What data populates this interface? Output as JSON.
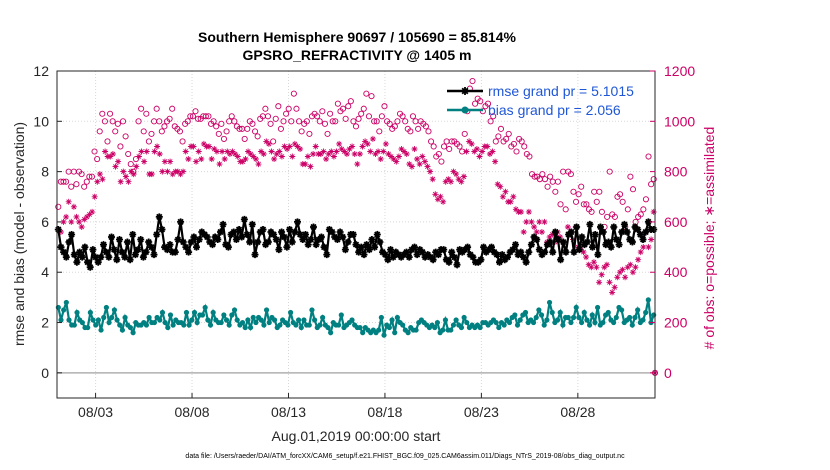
{
  "chart_data": {
    "type": "line",
    "title": "Southern Hemisphere 90697 / 105690 = 85.814%",
    "subtitle": "GPSRO_REFRACTIVITY @ 1405 m",
    "xlabel": "Aug.01,2019 00:00:00 start",
    "ylabel_left": "rmse and bias (model - observation)",
    "ylabel_right": "# of obs: o=possible; ∗=assimilated",
    "footnote": "data file: /Users/raeder/DAI/ATM_forcXX/CAM6_setup/f.e21.FHIST_BGC.f09_025.CAM6assim.011/Diags_NTrS_2019-08/obs_diag_output.nc",
    "x_tick_labels": [
      "08/03",
      "08/08",
      "08/13",
      "08/18",
      "08/23",
      "08/28"
    ],
    "x_tick_days": [
      3,
      8,
      13,
      18,
      23,
      28
    ],
    "xlim": [
      1,
      32
    ],
    "ylim_left": [
      -1,
      12
    ],
    "yticks_left": [
      0,
      2,
      4,
      6,
      8,
      10,
      12
    ],
    "ylim_right": [
      -100,
      1200
    ],
    "yticks_right": [
      0,
      200,
      400,
      600,
      800,
      1000,
      1200
    ],
    "grid": true,
    "legend_position": "top-right",
    "series": [
      {
        "name": "rmse grand pr = 5.1015",
        "axis": "left",
        "color": "#000000",
        "marker": "asterisk",
        "values": [
          5.7,
          5.0,
          4.8,
          4.6,
          5.2,
          5.5,
          4.7,
          4.4,
          4.8,
          4.6,
          5.0,
          4.4,
          4.2,
          4.9,
          4.6,
          4.4,
          4.6,
          5.1,
          4.8,
          4.6,
          5.4,
          4.9,
          4.5,
          5.3,
          4.8,
          4.6,
          5.2,
          4.5,
          5.5,
          4.7,
          4.9,
          5.3,
          4.6,
          4.8,
          5.2,
          5.0,
          4.7,
          5.5,
          6.2,
          5.7,
          5.0,
          4.9,
          5.1,
          4.8,
          4.8,
          5.3,
          6.0,
          5.2,
          5.0,
          4.8,
          5.2,
          5.4,
          5.0,
          5.3,
          5.6,
          5.5,
          5.4,
          5.2,
          5.1,
          5.4,
          5.3,
          5.6,
          5.9,
          5.1,
          5.0,
          5.5,
          5.6,
          5.3,
          5.7,
          5.4,
          6.1,
          5.5,
          5.2,
          5.9,
          4.7,
          5.2,
          5.6,
          5.7,
          5.1,
          5.2,
          5.6,
          5.5,
          5.3,
          4.9,
          5.6,
          5.4,
          5.0,
          5.7,
          5.2,
          5.6,
          6.0,
          5.5,
          5.3,
          5.5,
          5.1,
          5.3,
          5.8,
          5.1,
          5.3,
          5.4,
          5.0,
          4.7,
          5.7,
          5.6,
          5.4,
          5.3,
          5.6,
          5.4,
          4.9,
          5.2,
          5.5,
          5.5,
          5.1,
          4.8,
          5.0,
          4.7,
          5.1,
          4.9,
          5.3,
          5.0,
          5.5,
          5.2,
          4.8,
          4.7,
          4.5,
          4.9,
          4.6,
          4.8,
          4.7,
          4.6,
          4.7,
          4.8,
          4.6,
          4.9,
          5.0,
          4.7,
          4.9,
          4.8,
          4.6,
          4.7,
          4.6,
          4.5,
          4.8,
          4.7,
          4.9,
          4.9,
          4.5,
          4.4,
          4.8,
          4.6,
          4.3,
          4.9,
          4.8,
          4.9,
          5.0,
          4.7,
          4.6,
          4.4,
          4.4,
          4.5,
          5.0,
          4.8,
          4.9,
          5.0,
          4.8,
          4.7,
          4.4,
          4.7,
          4.5,
          4.6,
          4.8,
          4.9,
          5.1,
          4.7,
          4.8,
          4.6,
          4.4,
          4.8,
          5.1,
          5.4,
          5.3,
          4.9,
          4.7,
          4.8,
          5.1,
          5.2,
          4.8,
          5.6,
          5.3,
          4.5,
          5.2,
          4.8,
          5.5,
          5.6,
          4.8,
          5.8,
          4.9,
          5.4,
          5.1,
          5.2,
          5.9,
          5.0,
          5.5,
          4.7,
          5.8,
          5.6,
          5.1,
          5.2,
          5.0,
          5.8,
          5.3,
          5.1,
          5.6,
          5.9,
          5.6,
          5.3,
          5.2,
          5.8,
          5.7,
          5.5,
          5.3,
          5.6,
          6.0,
          5.7,
          5.7
        ]
      },
      {
        "name": "bias grand pr = 2.056",
        "axis": "left",
        "color": "#008080",
        "marker": "circle",
        "values": [
          2.6,
          2.1,
          2.5,
          2.8,
          2.1,
          1.9,
          1.9,
          2.4,
          2.1,
          2.0,
          1.8,
          1.8,
          2.4,
          2.1,
          1.9,
          2.1,
          1.7,
          2.2,
          2.6,
          2.0,
          2.2,
          2.5,
          2.1,
          1.9,
          1.7,
          2.2,
          1.9,
          1.8,
          1.6,
          2.0,
          1.9,
          1.9,
          2.0,
          1.9,
          2.2,
          2.0,
          2.0,
          2.2,
          2.1,
          2.4,
          2.0,
          1.8,
          2.3,
          1.9,
          2.1,
          2.0,
          2.0,
          1.9,
          2.4,
          1.9,
          2.1,
          2.4,
          2.0,
          2.3,
          2.3,
          2.6,
          2.1,
          1.9,
          2.4,
          2.1,
          2.0,
          2.0,
          2.3,
          2.1,
          1.9,
          2.3,
          2.5,
          2.1,
          1.9,
          2.0,
          1.8,
          2.1,
          1.8,
          2.2,
          2.0,
          2.2,
          2.1,
          1.9,
          2.5,
          2.0,
          2.2,
          2.1,
          1.8,
          1.9,
          2.1,
          2.0,
          1.9,
          2.4,
          2.0,
          1.9,
          2.1,
          1.8,
          2.1,
          1.9,
          1.9,
          2.5,
          2.1,
          1.8,
          1.9,
          2.2,
          1.9,
          1.8,
          1.6,
          2.0,
          1.9,
          1.9,
          2.3,
          1.8,
          1.9,
          2.0,
          2.1,
          1.9,
          1.8,
          1.8,
          1.6,
          1.8,
          1.7,
          1.6,
          1.7,
          1.6,
          1.7,
          2.2,
          1.5,
          1.9,
          1.8,
          2.1,
          1.6,
          2.2,
          2.0,
          1.9,
          1.7,
          1.6,
          1.8,
          1.7,
          1.7,
          2.0,
          2.1,
          2.0,
          1.9,
          1.8,
          1.9,
          1.8,
          2.0,
          1.6,
          1.7,
          2.1,
          1.7,
          1.7,
          1.9,
          2.1,
          1.9,
          1.8,
          2.2,
          2.0,
          1.8,
          1.9,
          1.8,
          1.9,
          1.8,
          2.0,
          2.0,
          1.9,
          2.0,
          2.1,
          2.0,
          1.8,
          2.0,
          1.9,
          2.1,
          2.0,
          2.2,
          2.3,
          1.9,
          2.1,
          2.3,
          2.4,
          2.0,
          2.1,
          2.0,
          2.2,
          2.5,
          2.3,
          1.9,
          2.1,
          2.8,
          2.4,
          2.0,
          2.1,
          2.4,
          1.9,
          2.2,
          2.2,
          2.0,
          2.2,
          2.6,
          2.2,
          2.0,
          2.4,
          2.1,
          1.9,
          2.3,
          2.0,
          2.6,
          1.9,
          2.0,
          2.3,
          2.4,
          2.1,
          2.0,
          2.2,
          2.6,
          2.5,
          2.0,
          2.1,
          2.2,
          1.9,
          2.2,
          2.5,
          2.0,
          2.1,
          2.4,
          2.9,
          2.0,
          2.3
        ]
      },
      {
        "name": "possible",
        "axis": "right",
        "color": "#cc0066",
        "marker": "open-circle",
        "values": [
          660,
          760,
          760,
          760,
          800,
          740,
          800,
          750,
          800,
          790,
          740,
          760,
          780,
          780,
          880,
          850,
          960,
          1030,
          1000,
          920,
          1030,
          1000,
          960,
          990,
          900,
          1000,
          940,
          870,
          830,
          800,
          850,
          1000,
          1050,
          960,
          1030,
          920,
          950,
          1000,
          1050,
          1000,
          960,
          980,
          1000,
          1010,
          1050,
          980,
          970,
          960,
          920,
          990,
          1000,
          1020,
          1020,
          1040,
          1010,
          1010,
          1020,
          1020,
          1020,
          990,
          1000,
          980,
          950,
          990,
          930,
          960,
          1000,
          1020,
          1000,
          980,
          970,
          970,
          930,
          970,
          1000,
          990,
          960,
          940,
          1010,
          1020,
          1050,
          1020,
          990,
          920,
          1010,
          1060,
          970,
          1000,
          1030,
          1050,
          1000,
          1110,
          1050,
          1000,
          960,
          990,
          1000,
          950,
          1020,
          1030,
          1020,
          1000,
          1040,
          990,
          950,
          1030,
          1000,
          1000,
          1070,
          1040,
          1050,
          1010,
          1060,
          1080,
          1000,
          980,
          1010,
          1030,
          1050,
          1110,
          1020,
          1100,
          1000,
          1000,
          960,
          1020,
          1060,
          1000,
          990,
          970,
          980,
          1000,
          1030,
          1020,
          1000,
          970,
          960,
          1020,
          1000,
          970,
          1000,
          990,
          980,
          960,
          920,
          900,
          860,
          870,
          840,
          900,
          920,
          890,
          920,
          920,
          910,
          900,
          880,
          950,
          1040,
          1130,
          1160,
          1070,
          1090,
          1080,
          1040,
          1060,
          1070,
          1000,
          1020,
          920,
          940,
          970,
          920,
          930,
          950,
          900,
          910,
          880,
          930,
          920,
          900,
          870,
          860,
          790,
          780,
          780,
          770,
          790,
          770,
          740,
          780,
          760,
          720,
          760,
          670,
          800,
          650,
          800,
          790,
          720,
          680,
          710,
          740,
          670,
          670,
          650,
          640,
          720,
          680,
          720,
          640,
          580,
          620,
          800,
          630,
          620,
          700,
          710,
          680,
          580,
          650,
          780,
          730,
          600,
          620,
          630,
          650,
          690,
          860,
          750,
          770
        ]
      },
      {
        "name": "assimilated",
        "axis": "right",
        "color": "#cc0066",
        "marker": "asterisk",
        "values": [
          570,
          560,
          600,
          620,
          680,
          600,
          660,
          620,
          600,
          580,
          610,
          620,
          630,
          640,
          700,
          760,
          790,
          770,
          880,
          860,
          860,
          870,
          820,
          840,
          760,
          800,
          780,
          760,
          800,
          790,
          820,
          860,
          880,
          840,
          880,
          790,
          790,
          880,
          900,
          870,
          800,
          840,
          800,
          840,
          790,
          800,
          800,
          790,
          800,
          880,
          850,
          900,
          900,
          840,
          880,
          850,
          910,
          900,
          900,
          850,
          890,
          880,
          830,
          880,
          850,
          880,
          870,
          880,
          870,
          860,
          840,
          840,
          850,
          880,
          870,
          860,
          850,
          830,
          880,
          870,
          920,
          910,
          880,
          850,
          870,
          880,
          860,
          900,
          890,
          900,
          860,
          910,
          900,
          890,
          830,
          830,
          860,
          820,
          870,
          900,
          870,
          870,
          880,
          850,
          870,
          880,
          860,
          880,
          910,
          890,
          880,
          870,
          890,
          900,
          870,
          830,
          870,
          900,
          920,
          910,
          880,
          930,
          870,
          880,
          850,
          880,
          910,
          870,
          860,
          850,
          840,
          860,
          890,
          880,
          870,
          830,
          820,
          890,
          850,
          830,
          860,
          840,
          820,
          800,
          770,
          710,
          690,
          700,
          680,
          760,
          770,
          760,
          800,
          790,
          770,
          760,
          780,
          880,
          920,
          910,
          880,
          890,
          860,
          880,
          900,
          900,
          870,
          880,
          840,
          750,
          740,
          700,
          720,
          680,
          680,
          700,
          650,
          640,
          640,
          560,
          600,
          640,
          600,
          580,
          560,
          600,
          560,
          600,
          520,
          540,
          550,
          520,
          560,
          540,
          520,
          480,
          580,
          560,
          530,
          580,
          500,
          500,
          480,
          460,
          430,
          420,
          440,
          420,
          360,
          390,
          420,
          430,
          360,
          320,
          340,
          380,
          400,
          410,
          380,
          420,
          430,
          400,
          420,
          450,
          480,
          500,
          560,
          500,
          530,
          640
        ]
      }
    ]
  }
}
